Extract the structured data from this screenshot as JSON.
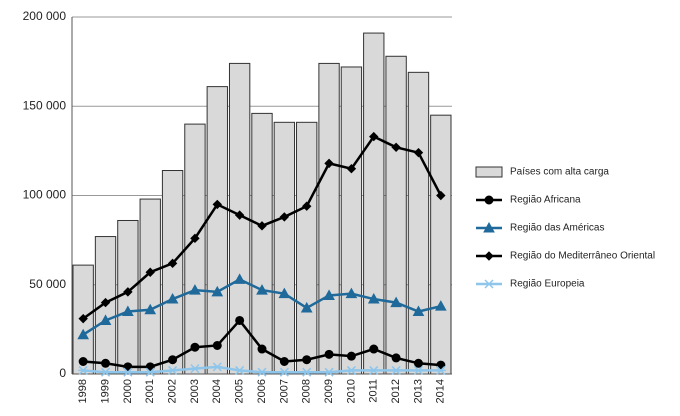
{
  "chart_data": {
    "type": "bar_line",
    "categories": [
      "1998",
      "1999",
      "2000",
      "2001",
      "2002",
      "2003",
      "2004",
      "2005",
      "2006",
      "2007",
      "2008",
      "2009",
      "2010",
      "2011",
      "2012",
      "2013",
      "2014"
    ],
    "bar_series": {
      "name": "Países com alta carga",
      "color": "#d9d9d9",
      "values": [
        61000,
        77000,
        86000,
        98000,
        114000,
        140000,
        161000,
        174000,
        146000,
        141000,
        141000,
        174000,
        172000,
        191000,
        178000,
        169000,
        145000
      ]
    },
    "series": [
      {
        "name": "Região Africana",
        "color": "#000000",
        "marker": "circle",
        "values": [
          7000,
          6000,
          4000,
          4000,
          8000,
          15000,
          16000,
          30000,
          14000,
          7000,
          8000,
          11000,
          10000,
          14000,
          9000,
          6000,
          5000
        ]
      },
      {
        "name": "Região das Américas",
        "color": "#1f6a9a",
        "marker": "triangle",
        "values": [
          22000,
          30000,
          35000,
          36000,
          42000,
          47000,
          46000,
          53000,
          47000,
          45000,
          37000,
          44000,
          45000,
          42000,
          40000,
          35000,
          38000
        ]
      },
      {
        "name": "Região do Mediterrâneo Oriental",
        "color": "#000000",
        "marker": "diamond",
        "values": [
          31000,
          40000,
          46000,
          57000,
          62000,
          76000,
          95000,
          89000,
          83000,
          88000,
          94000,
          118000,
          115000,
          133000,
          127000,
          124000,
          100000
        ]
      },
      {
        "name": "Região Europeia",
        "color": "#8ec5ea",
        "marker": "star",
        "values": [
          2000,
          1000,
          1000,
          1000,
          2000,
          3000,
          4000,
          2000,
          1000,
          1000,
          1000,
          1000,
          2000,
          2000,
          2000,
          2000,
          2000
        ]
      }
    ],
    "ylim": [
      0,
      200000
    ],
    "yticks": [
      {
        "value": 0,
        "label": "0"
      },
      {
        "value": 50000,
        "label": "50 000"
      },
      {
        "value": 100000,
        "label": "100 000"
      },
      {
        "value": 150000,
        "label": "150 000"
      },
      {
        "value": 200000,
        "label": "200 000"
      }
    ],
    "grid": true
  }
}
